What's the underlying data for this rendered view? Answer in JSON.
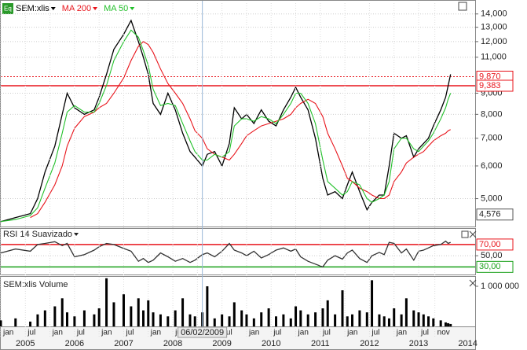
{
  "chart_data": [
    {
      "type": "line",
      "log_scale": true,
      "grid": true,
      "x": [
        2005.0,
        2005.3,
        2005.6,
        2005.75,
        2005.9,
        2006.1,
        2006.25,
        2006.35,
        2006.5,
        2006.7,
        2006.9,
        2007.0,
        2007.15,
        2007.3,
        2007.5,
        2007.65,
        2007.8,
        2007.9,
        2008.0,
        2008.1,
        2008.25,
        2008.4,
        2008.55,
        2008.7,
        2008.85,
        2008.95,
        2009.1,
        2009.2,
        2009.35,
        2009.5,
        2009.65,
        2009.75,
        2009.9,
        2010.0,
        2010.15,
        2010.3,
        2010.45,
        2010.6,
        2010.75,
        2010.9,
        2011.0,
        2011.1,
        2011.25,
        2011.4,
        2011.55,
        2011.65,
        2011.8,
        2011.95,
        2012.05,
        2012.15,
        2012.3,
        2012.45,
        2012.55,
        2012.7,
        2012.8,
        2012.9,
        2013.0,
        2013.15,
        2013.25,
        2013.4,
        2013.5,
        2013.6,
        2013.7,
        2013.8,
        2013.95,
        2014.05,
        2014.1,
        2014.15
      ],
      "series": [
        {
          "name": "SEM:xlis",
          "color": "#000000",
          "values": [
            4400,
            4500,
            4600,
            5000,
            5800,
            6700,
            8000,
            9000,
            8300,
            8000,
            8200,
            8800,
            10000,
            11500,
            12500,
            13500,
            12000,
            11000,
            10000,
            8500,
            8000,
            9000,
            8200,
            7200,
            6500,
            6300,
            6000,
            6400,
            6500,
            6000,
            6800,
            8300,
            7800,
            8000,
            7600,
            8200,
            7700,
            7500,
            8200,
            8800,
            9300,
            8800,
            8200,
            7000,
            5600,
            5100,
            5200,
            5000,
            5400,
            5800,
            5200,
            4700,
            4900,
            5100,
            5100,
            6000,
            7200,
            7000,
            7100,
            6300,
            6600,
            6800,
            7000,
            7500,
            8200,
            8800,
            9383,
            10000
          ]
        },
        {
          "name": "MA 200",
          "color": "#e8141b",
          "values": [
            null,
            null,
            4500,
            4600,
            4900,
            5400,
            6000,
            6700,
            7400,
            7900,
            8100,
            8300,
            8500,
            9000,
            9800,
            10800,
            11700,
            12000,
            11800,
            11300,
            10300,
            9500,
            9000,
            8500,
            7800,
            7300,
            7000,
            6600,
            6400,
            6300,
            6200,
            6400,
            6800,
            7100,
            7300,
            7500,
            7600,
            7700,
            7800,
            8000,
            8300,
            8500,
            8700,
            8500,
            7900,
            7200,
            6600,
            6000,
            5600,
            5500,
            5300,
            5200,
            5100,
            5000,
            5000,
            5100,
            5500,
            5800,
            6100,
            6300,
            6400,
            6500,
            6700,
            6900,
            7100,
            7200,
            7300,
            7350
          ]
        },
        {
          "name": "MA 50",
          "color": "#22c02a",
          "values": [
            4400,
            4450,
            4550,
            4750,
            5300,
            6100,
            7200,
            8100,
            8400,
            8100,
            8100,
            8500,
            9400,
            10800,
            12000,
            12800,
            12300,
            11400,
            10500,
            9200,
            8400,
            8500,
            8400,
            7600,
            6900,
            6500,
            6200,
            6200,
            6400,
            6300,
            6500,
            7500,
            7800,
            7800,
            7700,
            7900,
            7800,
            7600,
            8000,
            8500,
            9000,
            9000,
            8500,
            7600,
            6200,
            5500,
            5300,
            5100,
            5200,
            5500,
            5400,
            5000,
            4900,
            5000,
            5100,
            5500,
            6600,
            7000,
            7000,
            6600,
            6500,
            6700,
            6900,
            7200,
            7800,
            8300,
            8700,
            9000
          ]
        }
      ],
      "xlim": [
        2005,
        2014.65
      ],
      "ylim": [
        4280,
        14870
      ],
      "yticks": [
        {
          "value": 14000,
          "label": "14,000"
        },
        {
          "value": 13000,
          "label": "13,000"
        },
        {
          "value": 12000,
          "label": "12,000"
        },
        {
          "value": 11000,
          "label": "11,000"
        },
        {
          "value": 9000,
          "label": "9,000"
        },
        {
          "value": 8000,
          "label": "8,000"
        },
        {
          "value": 7000,
          "label": "7,000"
        },
        {
          "value": 6000,
          "label": "6,000"
        },
        {
          "value": 5000,
          "label": "5,000"
        }
      ],
      "hlines": [
        {
          "value": 9870,
          "label": "9,870",
          "color": "#e8141b",
          "style": "dotted"
        },
        {
          "value": 9383,
          "label": "9,383",
          "color": "#e8141b",
          "style": "solid"
        }
      ],
      "markers": [
        {
          "value": 4576,
          "label": "4,576"
        }
      ]
    },
    {
      "type": "line",
      "grid": true,
      "x": [
        2005.0,
        2005.3,
        2005.6,
        2005.75,
        2005.9,
        2006.1,
        2006.25,
        2006.35,
        2006.5,
        2006.7,
        2006.9,
        2007.0,
        2007.15,
        2007.3,
        2007.5,
        2007.65,
        2007.8,
        2007.9,
        2008.0,
        2008.1,
        2008.25,
        2008.4,
        2008.55,
        2008.7,
        2008.85,
        2008.95,
        2009.1,
        2009.2,
        2009.35,
        2009.5,
        2009.65,
        2009.75,
        2009.9,
        2010.0,
        2010.15,
        2010.3,
        2010.45,
        2010.6,
        2010.75,
        2010.9,
        2011.0,
        2011.1,
        2011.25,
        2011.4,
        2011.55,
        2011.65,
        2011.8,
        2011.95,
        2012.05,
        2012.15,
        2012.3,
        2012.45,
        2012.55,
        2012.7,
        2012.8,
        2012.9,
        2013.0,
        2013.15,
        2013.25,
        2013.4,
        2013.5,
        2013.6,
        2013.7,
        2013.8,
        2013.95,
        2014.05,
        2014.1,
        2014.15
      ],
      "series": [
        {
          "name": "RSI 14 Suavizado",
          "color": "#333333",
          "values": [
            55,
            62,
            58,
            70,
            72,
            75,
            68,
            72,
            48,
            52,
            60,
            66,
            72,
            70,
            63,
            58,
            40,
            45,
            38,
            42,
            55,
            48,
            40,
            45,
            38,
            42,
            52,
            55,
            48,
            58,
            72,
            60,
            55,
            50,
            58,
            46,
            52,
            60,
            64,
            58,
            62,
            48,
            40,
            35,
            30,
            42,
            50,
            44,
            55,
            60,
            45,
            38,
            50,
            56,
            52,
            74,
            72,
            55,
            62,
            42,
            58,
            60,
            64,
            68,
            70,
            76,
            72,
            74
          ]
        }
      ],
      "xlim": [
        2005,
        2014.65
      ],
      "ylim": [
        15,
        98
      ],
      "yticks": [
        {
          "value": 50,
          "label": "50,00"
        }
      ],
      "hlines": [
        {
          "value": 70,
          "label": "70,00",
          "color": "#e8141b",
          "style": "solid"
        },
        {
          "value": 30,
          "label": "30,00",
          "color": "#1aa01a",
          "style": "solid"
        }
      ]
    },
    {
      "type": "bar",
      "x": [
        2005.0,
        2005.3,
        2005.6,
        2005.75,
        2005.9,
        2006.1,
        2006.25,
        2006.35,
        2006.5,
        2006.7,
        2006.9,
        2007.0,
        2007.15,
        2007.3,
        2007.5,
        2007.65,
        2007.8,
        2007.9,
        2008.0,
        2008.1,
        2008.25,
        2008.4,
        2008.55,
        2008.7,
        2008.85,
        2008.95,
        2009.1,
        2009.2,
        2009.35,
        2009.5,
        2009.65,
        2009.75,
        2009.9,
        2010.0,
        2010.15,
        2010.3,
        2010.45,
        2010.6,
        2010.75,
        2010.9,
        2011.0,
        2011.1,
        2011.25,
        2011.4,
        2011.55,
        2011.65,
        2011.8,
        2011.95,
        2012.05,
        2012.15,
        2012.3,
        2012.45,
        2012.55,
        2012.7,
        2012.8,
        2012.9,
        2013.0,
        2013.15,
        2013.25,
        2013.4,
        2013.5,
        2013.6,
        2013.7,
        2013.8,
        2013.95,
        2014.05,
        2014.1,
        2014.15
      ],
      "series": [
        {
          "name": "SEM:xlis Volume",
          "color": "#000000",
          "values": [
            150000,
            200000,
            120000,
            300000,
            400000,
            500000,
            700000,
            350000,
            250000,
            400000,
            300000,
            450000,
            1200000,
            600000,
            800000,
            500000,
            700000,
            400000,
            650000,
            350000,
            300000,
            250000,
            400000,
            700000,
            300000,
            250000,
            350000,
            1000000,
            200000,
            300000,
            250000,
            600000,
            400000,
            300000,
            200000,
            350000,
            450000,
            250000,
            300000,
            200000,
            500000,
            400000,
            300000,
            350000,
            450000,
            650000,
            300000,
            900000,
            250000,
            300000,
            400000,
            350000,
            1150000,
            300000,
            250000,
            200000,
            450000,
            300000,
            700000,
            400000,
            350000,
            300000,
            250000,
            200000,
            150000,
            100000,
            80000,
            60000
          ]
        }
      ],
      "xlim": [
        2005,
        2014.65
      ],
      "ylim": [
        0,
        1235000
      ],
      "yticks": [
        {
          "value": 1000000,
          "label": "1 000 000"
        }
      ],
      "xticks": [
        {
          "value": 2005.0,
          "label": "jan"
        },
        {
          "value": 2005.5,
          "label": "jul"
        },
        {
          "value": 2006.0,
          "label": "jan"
        },
        {
          "value": 2006.5,
          "label": "jul"
        },
        {
          "value": 2007.0,
          "label": "jan"
        },
        {
          "value": 2007.5,
          "label": "jul"
        },
        {
          "value": 2008.0,
          "label": "jan"
        },
        {
          "value": 2008.5,
          "label": "jul"
        },
        {
          "value": 2009.0,
          "label": "jan"
        },
        {
          "value": 2009.5,
          "label": "jul"
        },
        {
          "value": 2010.0,
          "label": "jan"
        },
        {
          "value": 2010.5,
          "label": "jul"
        },
        {
          "value": 2011.0,
          "label": "jan"
        },
        {
          "value": 2011.5,
          "label": "jul"
        },
        {
          "value": 2012.0,
          "label": "jan"
        },
        {
          "value": 2012.5,
          "label": "jul"
        },
        {
          "value": 2013.0,
          "label": "jan"
        },
        {
          "value": 2013.5,
          "label": "jul"
        },
        {
          "value": 2013.83,
          "label": "nov"
        }
      ],
      "year_ticks": [
        {
          "value": 2005.5,
          "label": "2005"
        },
        {
          "value": 2006.5,
          "label": "2006"
        },
        {
          "value": 2007.5,
          "label": "2007"
        },
        {
          "value": 2008.5,
          "label": "2008"
        },
        {
          "value": 2009.5,
          "label": "2009"
        },
        {
          "value": 2010.5,
          "label": "2010"
        },
        {
          "value": 2011.5,
          "label": "2011"
        },
        {
          "value": 2012.5,
          "label": "2012"
        },
        {
          "value": 2013.5,
          "label": "2013"
        },
        {
          "value": 2014.5,
          "label": "2014"
        }
      ]
    }
  ],
  "crosshair": {
    "x": 2009.1,
    "label": "06/02/2009"
  }
}
